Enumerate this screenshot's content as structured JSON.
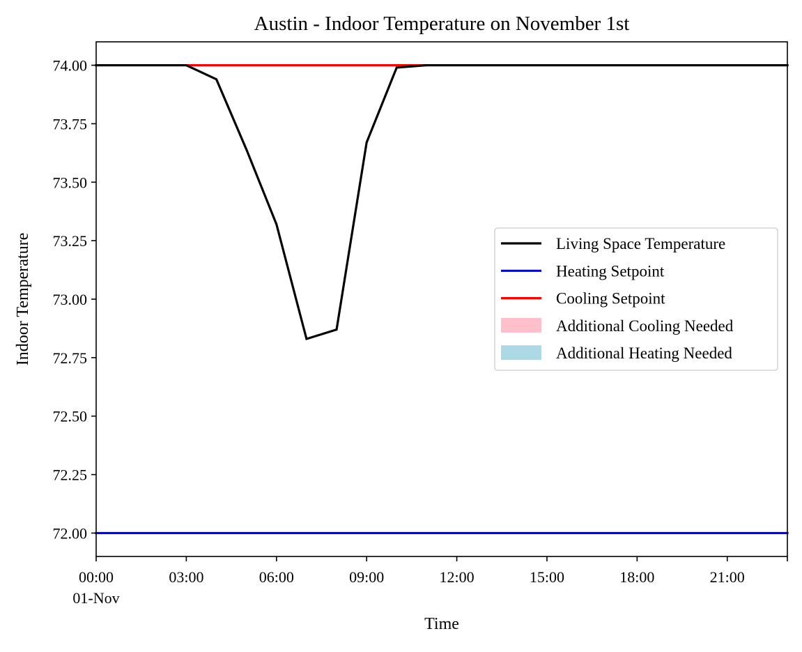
{
  "chart_data": {
    "type": "line",
    "title": "Austin - Indoor Temperature on November 1st",
    "xlabel": "Time",
    "ylabel": "Indoor Temperature",
    "x_ticks": [
      {
        "hour": 0,
        "label": "00:00",
        "sublabel": "01-Nov"
      },
      {
        "hour": 3,
        "label": "03:00"
      },
      {
        "hour": 6,
        "label": "06:00"
      },
      {
        "hour": 9,
        "label": "09:00"
      },
      {
        "hour": 12,
        "label": "12:00"
      },
      {
        "hour": 15,
        "label": "15:00"
      },
      {
        "hour": 18,
        "label": "18:00"
      },
      {
        "hour": 21,
        "label": "21:00"
      }
    ],
    "y_ticks": [
      {
        "value": 72.0,
        "label": "72.00"
      },
      {
        "value": 72.25,
        "label": "72.25"
      },
      {
        "value": 72.5,
        "label": "72.50"
      },
      {
        "value": 72.75,
        "label": "72.75"
      },
      {
        "value": 73.0,
        "label": "73.00"
      },
      {
        "value": 73.25,
        "label": "73.25"
      },
      {
        "value": 73.5,
        "label": "73.50"
      },
      {
        "value": 73.75,
        "label": "73.75"
      },
      {
        "value": 74.0,
        "label": "74.00"
      }
    ],
    "xlim": [
      0,
      23
    ],
    "ylim": [
      71.9,
      74.1
    ],
    "x": [
      0,
      1,
      2,
      3,
      4,
      5,
      6,
      7,
      8,
      9,
      10,
      11,
      12,
      13,
      14,
      15,
      16,
      17,
      18,
      19,
      20,
      21,
      22,
      23
    ],
    "series": [
      {
        "name": "Living Space Temperature",
        "color": "#000000",
        "values": [
          74.0,
          74.0,
          74.0,
          74.0,
          73.94,
          73.64,
          73.32,
          72.83,
          72.87,
          73.67,
          73.99,
          74.0,
          74.0,
          74.0,
          74.0,
          74.0,
          74.0,
          74.0,
          74.0,
          74.0,
          74.0,
          74.0,
          74.0,
          74.0
        ]
      },
      {
        "name": "Heating Setpoint",
        "color": "#0000ff",
        "values": [
          72.0,
          72.0,
          72.0,
          72.0,
          72.0,
          72.0,
          72.0,
          72.0,
          72.0,
          72.0,
          72.0,
          72.0,
          72.0,
          72.0,
          72.0,
          72.0,
          72.0,
          72.0,
          72.0,
          72.0,
          72.0,
          72.0,
          72.0,
          72.0
        ]
      },
      {
        "name": "Cooling Setpoint",
        "color": "#ff0000",
        "values": [
          74.0,
          74.0,
          74.0,
          74.0,
          74.0,
          74.0,
          74.0,
          74.0,
          74.0,
          74.0,
          74.0,
          74.0,
          74.0,
          74.0,
          74.0,
          74.0,
          74.0,
          74.0,
          74.0,
          74.0,
          74.0,
          74.0,
          74.0,
          74.0
        ]
      }
    ],
    "legend": {
      "position": "center-right",
      "entries": [
        {
          "label": "Living Space Temperature",
          "kind": "line",
          "color": "#000000"
        },
        {
          "label": "Heating Setpoint",
          "kind": "line",
          "color": "#0000ff"
        },
        {
          "label": "Cooling Setpoint",
          "kind": "line",
          "color": "#ff0000"
        },
        {
          "label": "Additional Cooling Needed",
          "kind": "patch",
          "color": "#ffc0cb"
        },
        {
          "label": "Additional Heating Needed",
          "kind": "patch",
          "color": "#add8e6"
        }
      ]
    },
    "grid": false
  }
}
